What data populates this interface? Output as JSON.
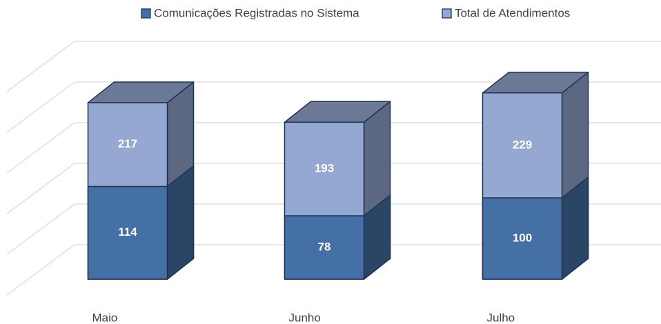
{
  "chart_data": {
    "type": "bar",
    "categories": [
      "Maio",
      "Junho",
      "Julho"
    ],
    "series": [
      {
        "name": "Comunicações Registradas no Sistema",
        "color": "#4470a5",
        "values": [
          114,
          78,
          100
        ]
      },
      {
        "name": "Total de Atendimentos",
        "color": "#95a8d2",
        "values": [
          217,
          193,
          229
        ]
      }
    ],
    "ylim": [
      0,
      250
    ],
    "yticks": [
      0,
      50,
      100,
      150,
      200,
      250
    ],
    "grid": true,
    "legend": "top"
  }
}
